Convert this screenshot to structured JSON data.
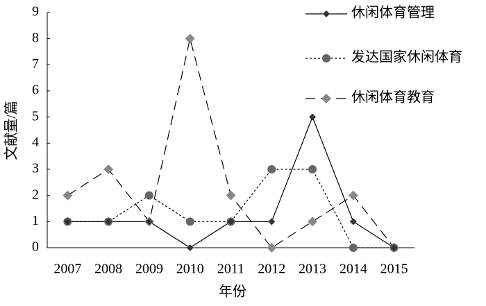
{
  "chart_data": {
    "type": "line",
    "x_label": "年份",
    "y_label": "文献量/篇",
    "categories": [
      "2007",
      "2008",
      "2009",
      "2010",
      "2011",
      "2012",
      "2013",
      "2014",
      "2015"
    ],
    "ylim": [
      0,
      9
    ],
    "yticks": [
      0,
      1,
      2,
      3,
      4,
      5,
      6,
      7,
      8,
      9
    ],
    "legend": "upper right",
    "series": [
      {
        "name": "休闲体育管理",
        "color": "#333333",
        "marker": "diamond",
        "dash": "solid",
        "values": [
          1,
          1,
          1,
          0,
          1,
          1,
          5,
          1,
          0
        ]
      },
      {
        "name": "发达国家休闲体育",
        "color": "#666666",
        "marker": "circle",
        "dash": "dotted",
        "values": [
          1,
          1,
          2,
          1,
          1,
          3,
          3,
          0,
          0
        ]
      },
      {
        "name": "休闲体育教育",
        "color": "#888888",
        "marker": "large-diamond",
        "dash": "dashed",
        "values": [
          2,
          3,
          1,
          8,
          2,
          0,
          1,
          2,
          0
        ]
      }
    ]
  }
}
